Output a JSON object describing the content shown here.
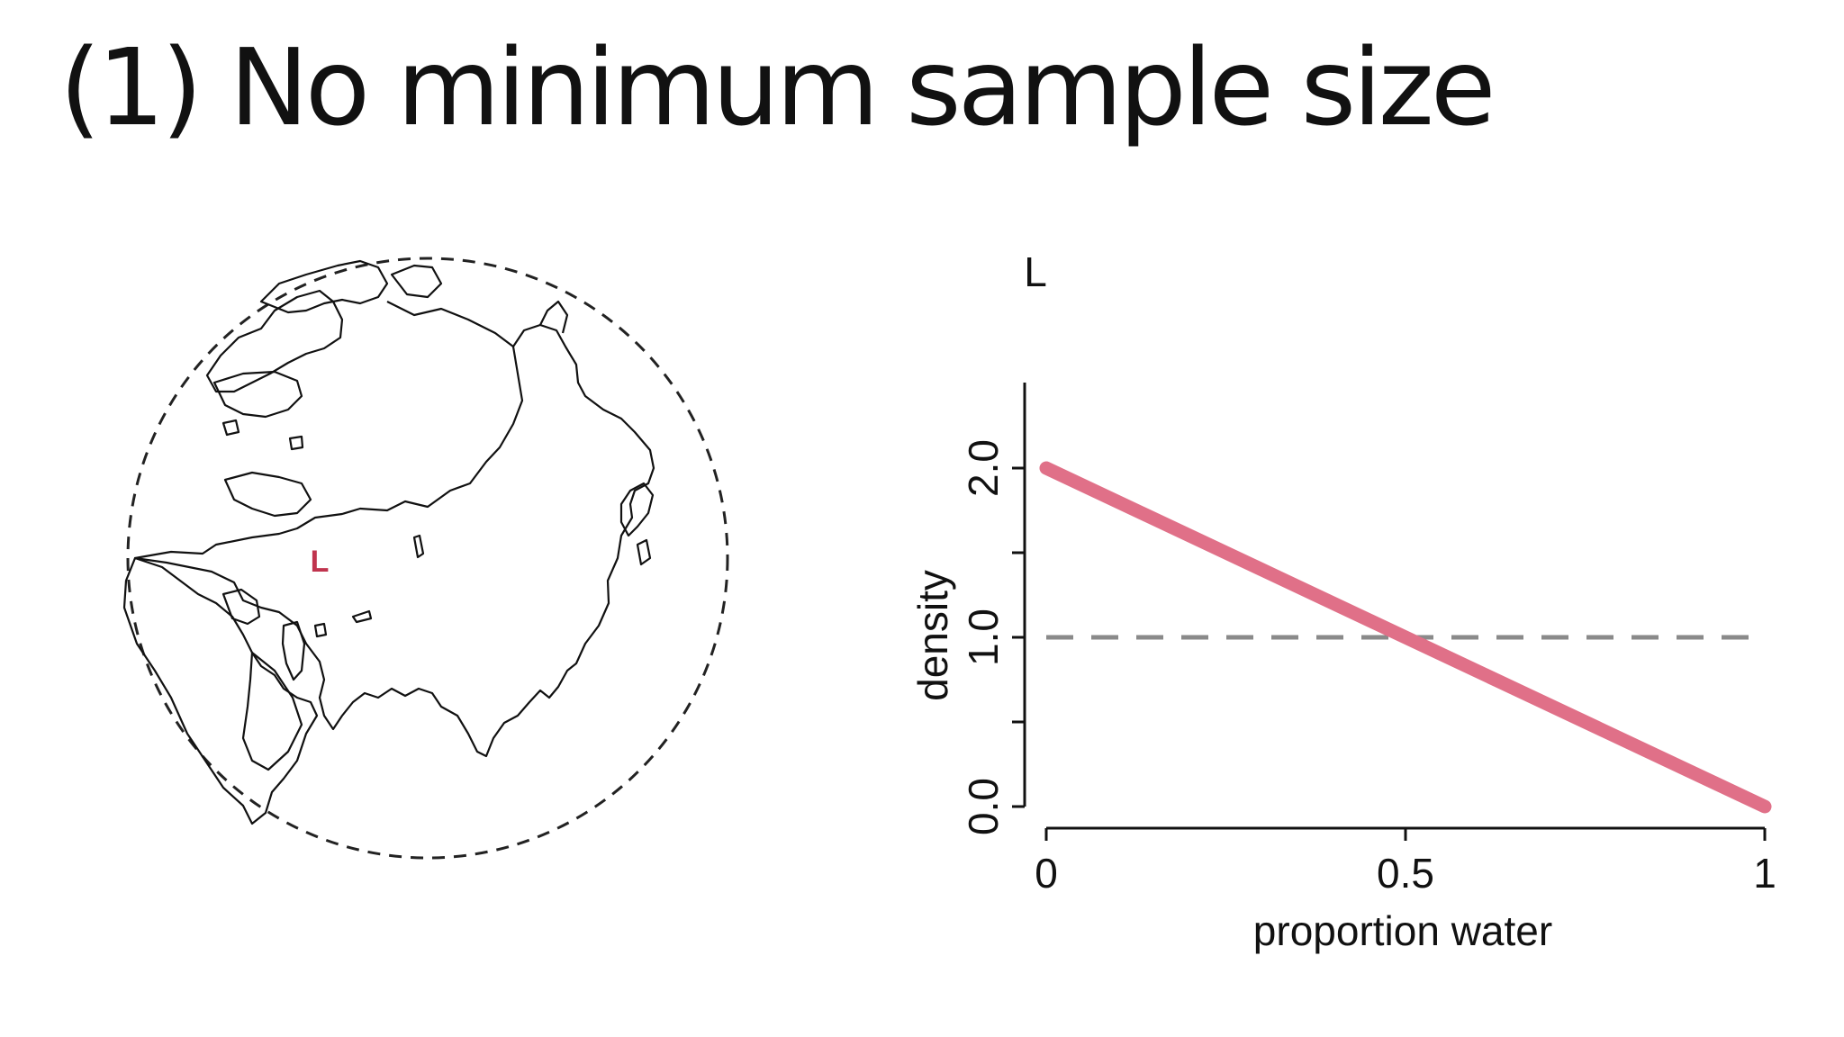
{
  "slide": {
    "title": "(1) No minimum sample size"
  },
  "globe": {
    "marker_label": "L",
    "marker_color": "#c0344e"
  },
  "chart_data": {
    "type": "line",
    "title": "L",
    "xlabel": "proportion water",
    "ylabel": "density",
    "xlim": [
      0,
      1
    ],
    "ylim": [
      0,
      2.0
    ],
    "x_ticks": [
      0,
      0.5,
      1
    ],
    "x_tick_labels": [
      "0",
      "0.5",
      "1"
    ],
    "y_ticks": [
      0.0,
      0.5,
      1.0,
      1.5,
      2.0
    ],
    "y_tick_labels": [
      "0.0",
      "",
      "1.0",
      "",
      "2.0"
    ],
    "grid": false,
    "series": [
      {
        "x": [
          0,
          1
        ],
        "values": [
          2.0,
          0.0
        ],
        "color": "#e07088",
        "style": "solid"
      },
      {
        "x": [
          0,
          1
        ],
        "values": [
          1.0,
          1.0
        ],
        "color": "#8a8a8a",
        "style": "dashed"
      }
    ]
  }
}
